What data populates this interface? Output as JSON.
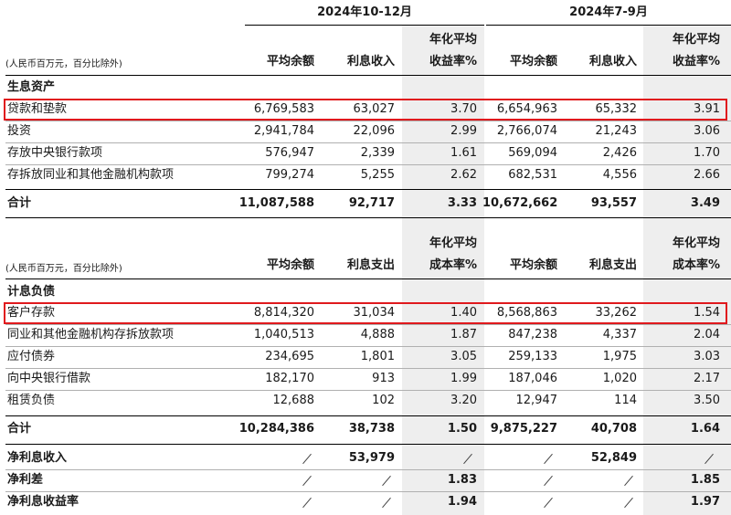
{
  "periods": {
    "current": "2024年10-12月",
    "previous": "2024年7-9月"
  },
  "unit_note": "(人民币百万元，百分比除外)",
  "assets": {
    "headers": {
      "avg_balance": "平均余额",
      "interest": "利息收入",
      "rate_line1": "年化平均",
      "rate_line2": "收益率%"
    },
    "section_label": "生息资产",
    "rows": [
      {
        "label": "贷款和垫款",
        "c_bal": "6,769,583",
        "c_int": "63,027",
        "c_rate": "3.70",
        "p_bal": "6,654,963",
        "p_int": "65,332",
        "p_rate": "3.91"
      },
      {
        "label": "投资",
        "c_bal": "2,941,784",
        "c_int": "22,096",
        "c_rate": "2.99",
        "p_bal": "2,766,074",
        "p_int": "21,243",
        "p_rate": "3.06"
      },
      {
        "label": "存放中央银行款项",
        "c_bal": "576,947",
        "c_int": "2,339",
        "c_rate": "1.61",
        "p_bal": "569,094",
        "p_int": "2,426",
        "p_rate": "1.70"
      },
      {
        "label": "存拆放同业和其他金融机构款项",
        "c_bal": "799,274",
        "c_int": "5,255",
        "c_rate": "2.62",
        "p_bal": "682,531",
        "p_int": "4,556",
        "p_rate": "2.66"
      }
    ],
    "total": {
      "label": "合计",
      "c_bal": "11,087,588",
      "c_int": "92,717",
      "c_rate": "3.33",
      "p_bal": "10,672,662",
      "p_int": "93,557",
      "p_rate": "3.49"
    }
  },
  "liabilities": {
    "headers": {
      "avg_balance": "平均余额",
      "interest": "利息支出",
      "rate_line1": "年化平均",
      "rate_line2": "成本率%"
    },
    "section_label": "计息负债",
    "rows": [
      {
        "label": "客户存款",
        "c_bal": "8,814,320",
        "c_int": "31,034",
        "c_rate": "1.40",
        "p_bal": "8,568,863",
        "p_int": "33,262",
        "p_rate": "1.54"
      },
      {
        "label": "同业和其他金融机构存拆放款项",
        "c_bal": "1,040,513",
        "c_int": "4,888",
        "c_rate": "1.87",
        "p_bal": "847,238",
        "p_int": "4,337",
        "p_rate": "2.04"
      },
      {
        "label": "应付债券",
        "c_bal": "234,695",
        "c_int": "1,801",
        "c_rate": "3.05",
        "p_bal": "259,133",
        "p_int": "1,975",
        "p_rate": "3.03"
      },
      {
        "label": "向中央银行借款",
        "c_bal": "182,170",
        "c_int": "913",
        "c_rate": "1.99",
        "p_bal": "187,046",
        "p_int": "1,020",
        "p_rate": "2.17"
      },
      {
        "label": "租赁负债",
        "c_bal": "12,688",
        "c_int": "102",
        "c_rate": "3.20",
        "p_bal": "12,947",
        "p_int": "114",
        "p_rate": "3.50"
      }
    ],
    "total": {
      "label": "合计",
      "c_bal": "10,284,386",
      "c_int": "38,738",
      "c_rate": "1.50",
      "p_bal": "9,875,227",
      "p_int": "40,708",
      "p_rate": "1.64"
    }
  },
  "summary": [
    {
      "label": "净利息收入",
      "c_int": "53,979",
      "c_rate": "",
      "p_int": "52,849",
      "p_rate": ""
    },
    {
      "label": "净利差",
      "c_int": "",
      "c_rate": "1.83",
      "p_int": "",
      "p_rate": "1.85"
    },
    {
      "label": "净利息收益率",
      "c_int": "",
      "c_rate": "1.94",
      "p_int": "",
      "p_rate": "1.97"
    }
  ],
  "colors": {
    "highlight": "#e0191d",
    "shade": "#eeeeee"
  }
}
